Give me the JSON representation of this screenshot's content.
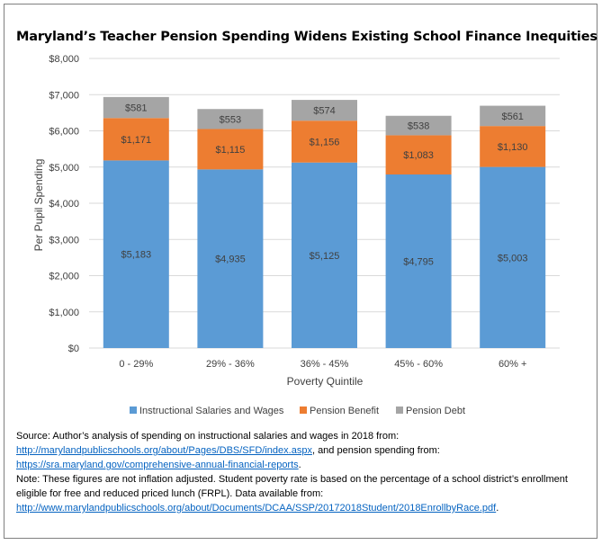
{
  "chart_data": {
    "type": "bar",
    "stacked": true,
    "title": "Maryland’s Teacher Pension Spending Widens Existing School Finance Inequities",
    "xlabel": "Poverty Quintile",
    "ylabel": "Per Pupil Spending",
    "categories": [
      "0 - 29%",
      "29% - 36%",
      "36% - 45%",
      "45% - 60%",
      "60% +"
    ],
    "ylim": [
      0,
      8000
    ],
    "yticks": [
      "$0",
      "$1,000",
      "$2,000",
      "$3,000",
      "$4,000",
      "$5,000",
      "$6,000",
      "$7,000",
      "$8,000"
    ],
    "grid": true,
    "legend_position": "bottom",
    "series": [
      {
        "name": "Instructional Salaries and Wages",
        "color": "#5b9bd5",
        "values": [
          5183,
          4935,
          5125,
          4795,
          5003
        ],
        "labels": [
          "$5,183",
          "$4,935",
          "$5,125",
          "$4,795",
          "$5,003"
        ]
      },
      {
        "name": "Pension Benefit",
        "color": "#ed7d31",
        "values": [
          1171,
          1115,
          1156,
          1083,
          1130
        ],
        "labels": [
          "$1,171",
          "$1,115",
          "$1,156",
          "$1,083",
          "$1,130"
        ]
      },
      {
        "name": "Pension Debt",
        "color": "#a5a5a5",
        "values": [
          581,
          553,
          574,
          538,
          561
        ],
        "labels": [
          "$581",
          "$553",
          "$574",
          "$538",
          "$561"
        ]
      }
    ]
  },
  "footer": {
    "source_text": "Source: Author’s analysis of spending on instructional salaries and wages in 2018 from:",
    "source_link1": "http://marylandpublicschools.org/about/Pages/DBS/SFD/index.aspx",
    "source_mid": ", and pension spending from:",
    "source_link2": "https://sra.maryland.gov/comprehensive-annual-financial-reports",
    "source_end": ".",
    "note_line1": "Note: These figures are not inflation adjusted. Student poverty rate is based on the percentage of a school district’s enrollment",
    "note_line2": "eligible for free and reduced priced lunch (FRPL). Data available from:",
    "note_link": "http://www.marylandpublicschools.org/about/Documents/DCAA/SSP/20172018Student/2018EnrollbyRace.pdf",
    "note_end": "."
  }
}
